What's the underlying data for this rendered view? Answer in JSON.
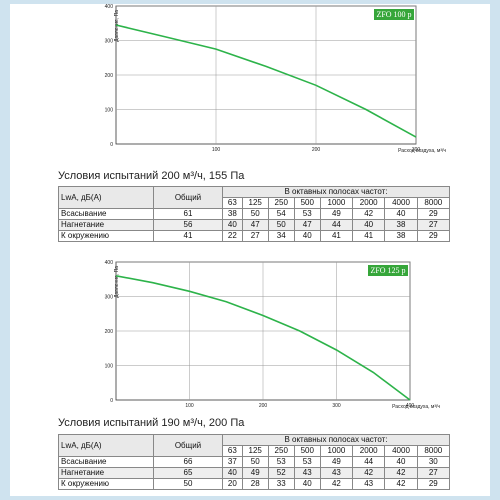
{
  "charts": [
    {
      "id": "top",
      "badge": "ZFO 100 p",
      "ylabel": "Давление, Па",
      "xlabel": "Расход воздуха, м³/ч",
      "x_ticks": [
        "100",
        "200",
        "300"
      ],
      "y_ticks": [
        "100",
        "200",
        "300",
        "400"
      ],
      "y_zero": "0",
      "colors": {
        "line": "#2db34a",
        "badge": "#36a63a"
      }
    },
    {
      "id": "bottom",
      "badge": "ZFO 125 p",
      "ylabel": "Давление, Па",
      "xlabel": "Расход воздуха, м³/ч",
      "x_ticks": [
        "100",
        "200",
        "300",
        "400"
      ],
      "y_ticks": [
        "100",
        "200",
        "300",
        "400"
      ],
      "y_zero": "0",
      "colors": {
        "line": "#2db34a",
        "badge": "#36a63a"
      }
    }
  ],
  "chart_data": [
    {
      "type": "line",
      "title": "ZFO 100 p",
      "xlabel": "Расход воздуха, м³/ч",
      "ylabel": "Давление, Па",
      "xlim": [
        0,
        300
      ],
      "ylim": [
        0,
        400
      ],
      "grid": true,
      "x": [
        0,
        50,
        100,
        150,
        200,
        250,
        300
      ],
      "series": [
        {
          "values": [
            345,
            310,
            275,
            225,
            170,
            100,
            20
          ]
        }
      ]
    },
    {
      "type": "line",
      "title": "ZFO 125 p",
      "xlabel": "Расход воздуха, м³/ч",
      "ylabel": "Давление, Па",
      "xlim": [
        0,
        400
      ],
      "ylim": [
        0,
        400
      ],
      "grid": true,
      "x": [
        0,
        50,
        100,
        150,
        200,
        250,
        300,
        350,
        400
      ],
      "series": [
        {
          "values": [
            360,
            340,
            315,
            285,
            245,
            200,
            145,
            80,
            0
          ]
        }
      ]
    }
  ],
  "section1": {
    "condition": "Условия испытаний 200 м³/ч, 155 Па",
    "table": {
      "lwa": "LwA, дБ(А)",
      "total": "Общий",
      "bands_title": "В октавных полосах частот:",
      "bands": [
        "63",
        "125",
        "250",
        "500",
        "1000",
        "2000",
        "4000",
        "8000"
      ],
      "rows": [
        {
          "label": "Всасывание",
          "total": "61",
          "values": [
            "38",
            "50",
            "54",
            "53",
            "49",
            "42",
            "40",
            "29"
          ]
        },
        {
          "label": "Нагнетание",
          "total": "56",
          "values": [
            "40",
            "47",
            "50",
            "47",
            "44",
            "40",
            "38",
            "27"
          ]
        },
        {
          "label": "К окружению",
          "total": "41",
          "values": [
            "22",
            "27",
            "34",
            "40",
            "41",
            "41",
            "38",
            "29"
          ]
        }
      ]
    }
  },
  "section2": {
    "condition": "Условия испытаний 190 м³/ч, 200 Па",
    "table": {
      "lwa": "LwA, дБ(А)",
      "total": "Общий",
      "bands_title": "В октавных полосах частот:",
      "bands": [
        "63",
        "125",
        "250",
        "500",
        "1000",
        "2000",
        "4000",
        "8000"
      ],
      "rows": [
        {
          "label": "Всасывание",
          "total": "66",
          "values": [
            "37",
            "50",
            "53",
            "53",
            "49",
            "44",
            "40",
            "30"
          ]
        },
        {
          "label": "Нагнетание",
          "total": "65",
          "values": [
            "40",
            "49",
            "52",
            "43",
            "43",
            "42",
            "42",
            "27"
          ]
        },
        {
          "label": "К окружению",
          "total": "50",
          "values": [
            "20",
            "28",
            "33",
            "40",
            "42",
            "43",
            "42",
            "29"
          ]
        }
      ]
    }
  }
}
